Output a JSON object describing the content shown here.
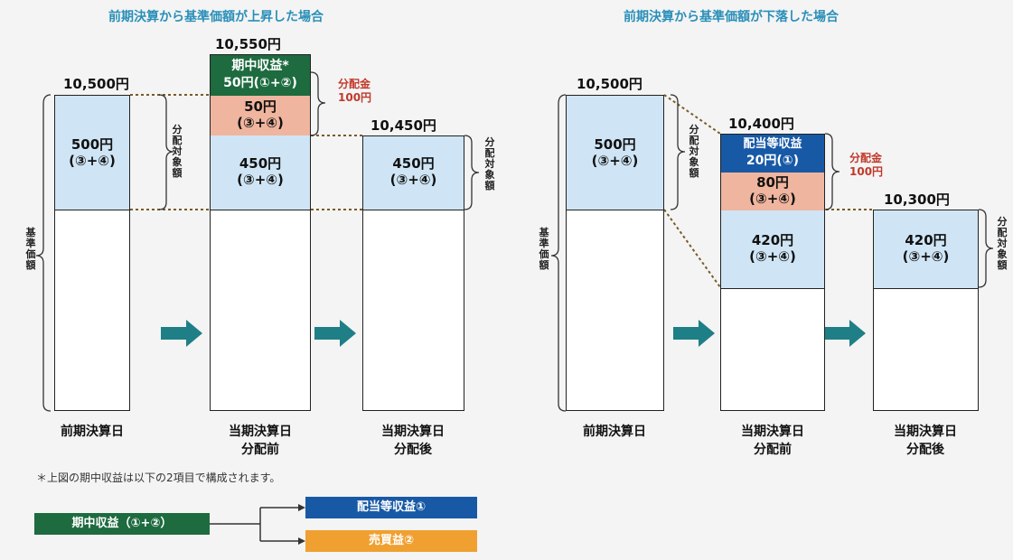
{
  "left": {
    "title": "前期決算から基準価額が上昇した場合",
    "prev_value": "10,500円",
    "prev_top": {
      "line1": "500円",
      "line2": "(③+④)"
    },
    "mid_value": "10,550円",
    "mid_green": {
      "line1": "期中収益*",
      "line2": "50円(①+②)"
    },
    "mid_salmon": {
      "line1": "50円",
      "line2": "(③+④)"
    },
    "mid_blue": {
      "line1": "450円",
      "line2": "(③+④)"
    },
    "dist_label": "分配金\n100円",
    "after_value": "10,450円",
    "after_blue": {
      "line1": "450円",
      "line2": "(③+④)"
    },
    "brace_label_mid": "分配対象額",
    "brace_label_after": "分配対象額",
    "base_label": "基準価額",
    "captions": [
      "前期決算日",
      "当期決算日\n分配前",
      "当期決算日\n分配後"
    ]
  },
  "right": {
    "title": "前期決算から基準価額が下落した場合",
    "prev_value": "10,500円",
    "prev_top": {
      "line1": "500円",
      "line2": "(③+④)"
    },
    "mid_value": "10,400円",
    "mid_navy": {
      "line1": "配当等収益",
      "line2": "20円(①)"
    },
    "mid_salmon": {
      "line1": "80円",
      "line2": "(③+④)"
    },
    "mid_blue": {
      "line1": "420円",
      "line2": "(③+④)"
    },
    "dist_label": "分配金\n100円",
    "after_value": "10,300円",
    "after_blue": {
      "line1": "420円",
      "line2": "(③+④)"
    },
    "brace_label_prev": "分配対象額",
    "brace_label_after": "分配対象額",
    "base_label": "基準価額",
    "captions": [
      "前期決算日",
      "当期決算日\n分配前",
      "当期決算日\n分配後"
    ]
  },
  "note": "＊上図の期中収益は以下の2項目で構成されます。",
  "legend": {
    "source": "期中収益（①+②）",
    "target1": "配当等収益①",
    "target2": "売買益②"
  },
  "colors": {
    "title": "#2a8fb8",
    "arrow": "#1f7f86",
    "green": "#1d6b3f",
    "navy": "#1859a6",
    "orange": "#f0a030",
    "blue_light": "#cfe5f5",
    "salmon": "#f0b59e",
    "red_text": "#c0392b"
  }
}
